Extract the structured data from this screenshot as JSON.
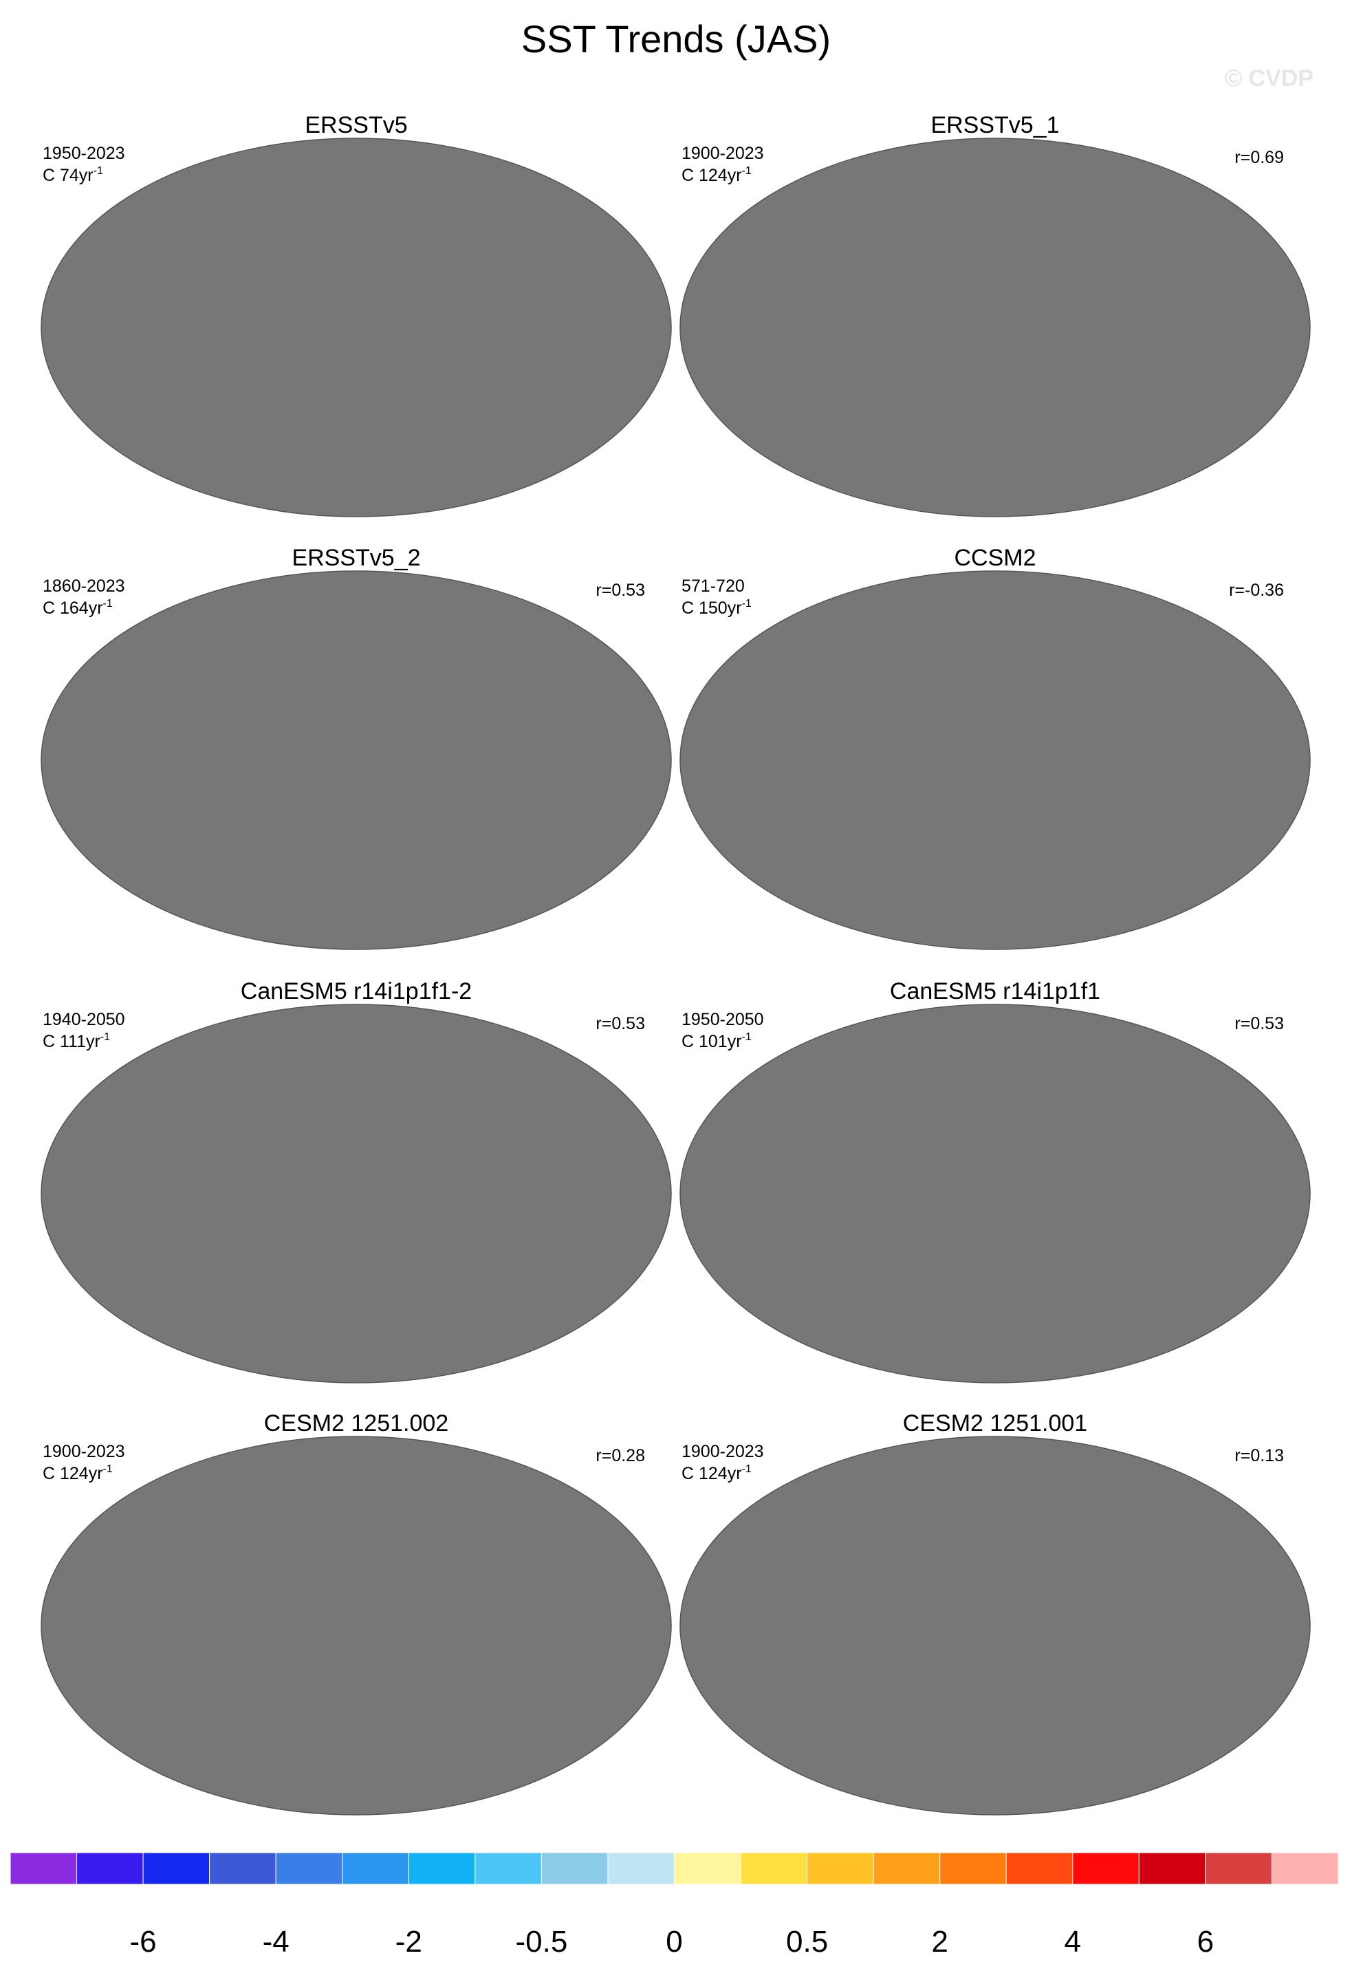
{
  "title": "SST Trends (JAS)",
  "watermark": "© CVDP",
  "panels": [
    {
      "title": "ERSSTv5",
      "period": "1950-2023",
      "units": "C 74yr",
      "units_exp": "-1",
      "r": null,
      "fill": "#ffc125"
    },
    {
      "title": "ERSSTv5_1",
      "period": "1900-2023",
      "units": "C 124yr",
      "units_exp": "-1",
      "r": "r=0.69",
      "fill": "#ffb01f"
    },
    {
      "title": "ERSSTv5_2",
      "period": "1860-2023",
      "units": "C 164yr",
      "units_exp": "-1",
      "r": "r=0.53",
      "fill": "#ffc125"
    },
    {
      "title": "CCSM2",
      "period": "571-720",
      "units": "C 150yr",
      "units_exp": "-1",
      "r": "r=-0.36",
      "fill": "#c4e3f3"
    },
    {
      "title": "CanESM5 r14i1p1f1-2",
      "period": "1940-2050",
      "units": "C 111yr",
      "units_exp": "-1",
      "r": "r=0.53",
      "fill": "#ff8a1c"
    },
    {
      "title": "CanESM5 r14i1p1f1",
      "period": "1950-2050",
      "units": "C 101yr",
      "units_exp": "-1",
      "r": "r=0.53",
      "fill": "#ff8a1c"
    },
    {
      "title": "CESM2 1251.002",
      "period": "1900-2023",
      "units": "C 124yr",
      "units_exp": "-1",
      "r": "r=0.28",
      "fill": "#ffc125"
    },
    {
      "title": "CESM2 1251.001",
      "period": "1900-2023",
      "units": "C 124yr",
      "units_exp": "-1",
      "r": "r=0.13",
      "fill": "#ffc125"
    }
  ],
  "colorbar": {
    "colors": [
      "#8a2be2",
      "#3a1cf0",
      "#1428f0",
      "#3c5ad8",
      "#3a7ee8",
      "#2a96f0",
      "#12b0f5",
      "#4cc4f5",
      "#8ccbe8",
      "#bfe5f5",
      "#fff59c",
      "#ffe040",
      "#ffc125",
      "#ffa01a",
      "#ff7d10",
      "#ff4a10",
      "#ff0a0a",
      "#d00010",
      "#d84040",
      "#ffb0b0"
    ],
    "ticks": [
      -6,
      -4,
      -2,
      -0.5,
      0,
      0.5,
      2,
      4,
      6
    ]
  }
}
